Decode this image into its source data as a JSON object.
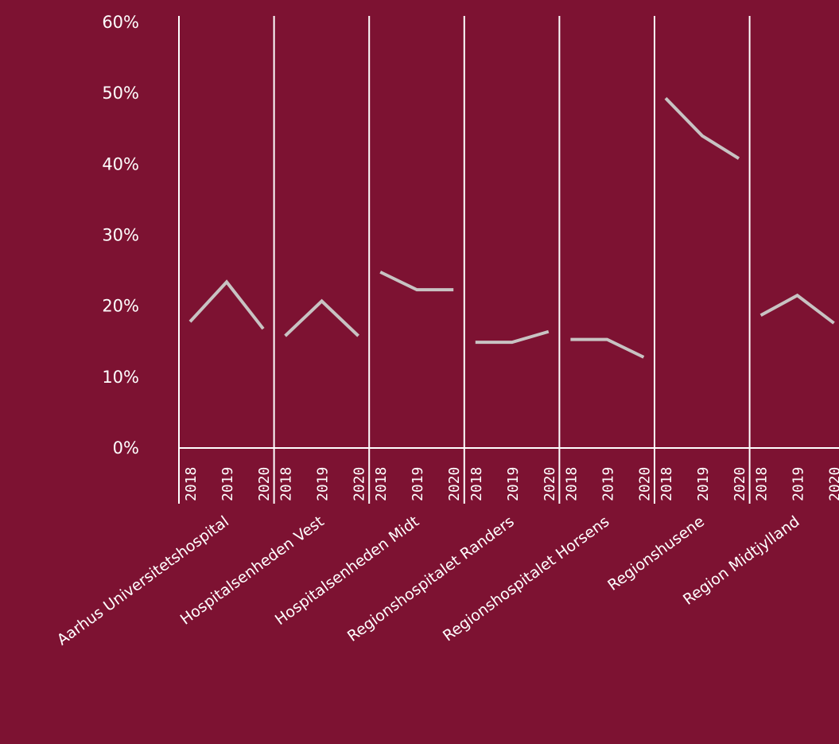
{
  "chart_data": {
    "type": "line",
    "title": "",
    "xlabel": "",
    "ylabel": "",
    "ylim": [
      0,
      60
    ],
    "y_ticks": [
      "0%",
      "10%",
      "20%",
      "30%",
      "40%",
      "50%",
      "60%"
    ],
    "x": [
      "2018",
      "2019",
      "2020"
    ],
    "grid": false,
    "legend": "none",
    "colors": {
      "background": "#7d1232",
      "line": "#c8c3c3",
      "text": "#ffffff",
      "axis": "#ffffff"
    },
    "series": [
      {
        "name": "Aarhus Universitetshospital",
        "values": [
          17.8,
          23.4,
          16.8
        ]
      },
      {
        "name": "Hospitalsenheden Vest",
        "values": [
          15.8,
          20.7,
          15.8
        ]
      },
      {
        "name": "Hospitalsenheden Midt",
        "values": [
          24.8,
          22.3,
          22.3
        ]
      },
      {
        "name": "Regionshospitalet Randers",
        "values": [
          14.9,
          14.9,
          16.4
        ]
      },
      {
        "name": "Regionshospitalet Horsens",
        "values": [
          15.3,
          15.3,
          12.8
        ]
      },
      {
        "name": "Regionshusene",
        "values": [
          49.3,
          44.0,
          40.8
        ]
      },
      {
        "name": "Region Midtjylland",
        "values": [
          18.7,
          21.5,
          17.6
        ]
      }
    ]
  }
}
